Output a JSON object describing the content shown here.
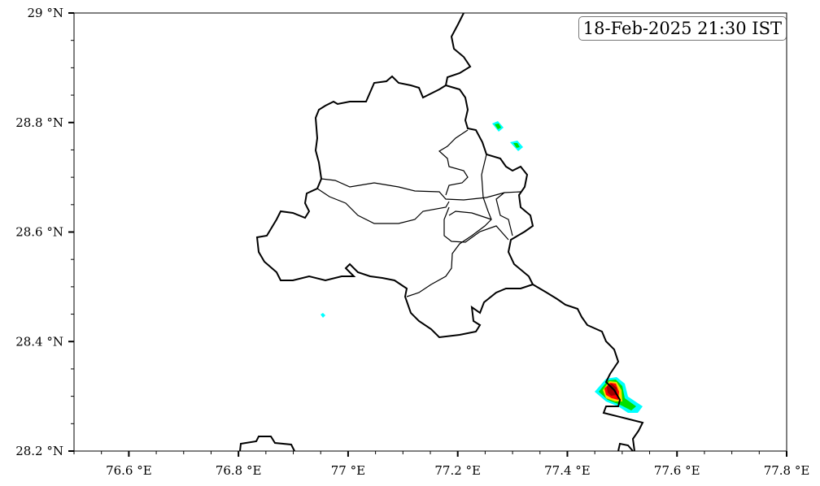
{
  "timestamp": "18-Feb-2025 21:30 IST",
  "axes": {
    "x_range": [
      76.5,
      77.8
    ],
    "y_range": [
      28.2,
      29.0
    ],
    "x_ticks": [
      {
        "v": 76.6,
        "label": "76.6 °E"
      },
      {
        "v": 76.8,
        "label": "76.8 °E"
      },
      {
        "v": 77.0,
        "label": "77 °E"
      },
      {
        "v": 77.2,
        "label": "77.2 °E"
      },
      {
        "v": 77.4,
        "label": "77.4 °E"
      },
      {
        "v": 77.6,
        "label": "77.6 °E"
      },
      {
        "v": 77.8,
        "label": "77.8 °E"
      }
    ],
    "y_ticks": [
      {
        "v": 28.2,
        "label": "28.2 °N"
      },
      {
        "v": 28.4,
        "label": "28.4 °N"
      },
      {
        "v": 28.6,
        "label": "28.6 °N"
      },
      {
        "v": 28.8,
        "label": "28.8 °N"
      },
      {
        "v": 29.0,
        "label": "29 °N"
      }
    ],
    "minor_step": 0.05
  },
  "contour_colors": [
    "#00ffff",
    "#00e000",
    "#ffd700",
    "#ff0000",
    "#a00000"
  ]
}
